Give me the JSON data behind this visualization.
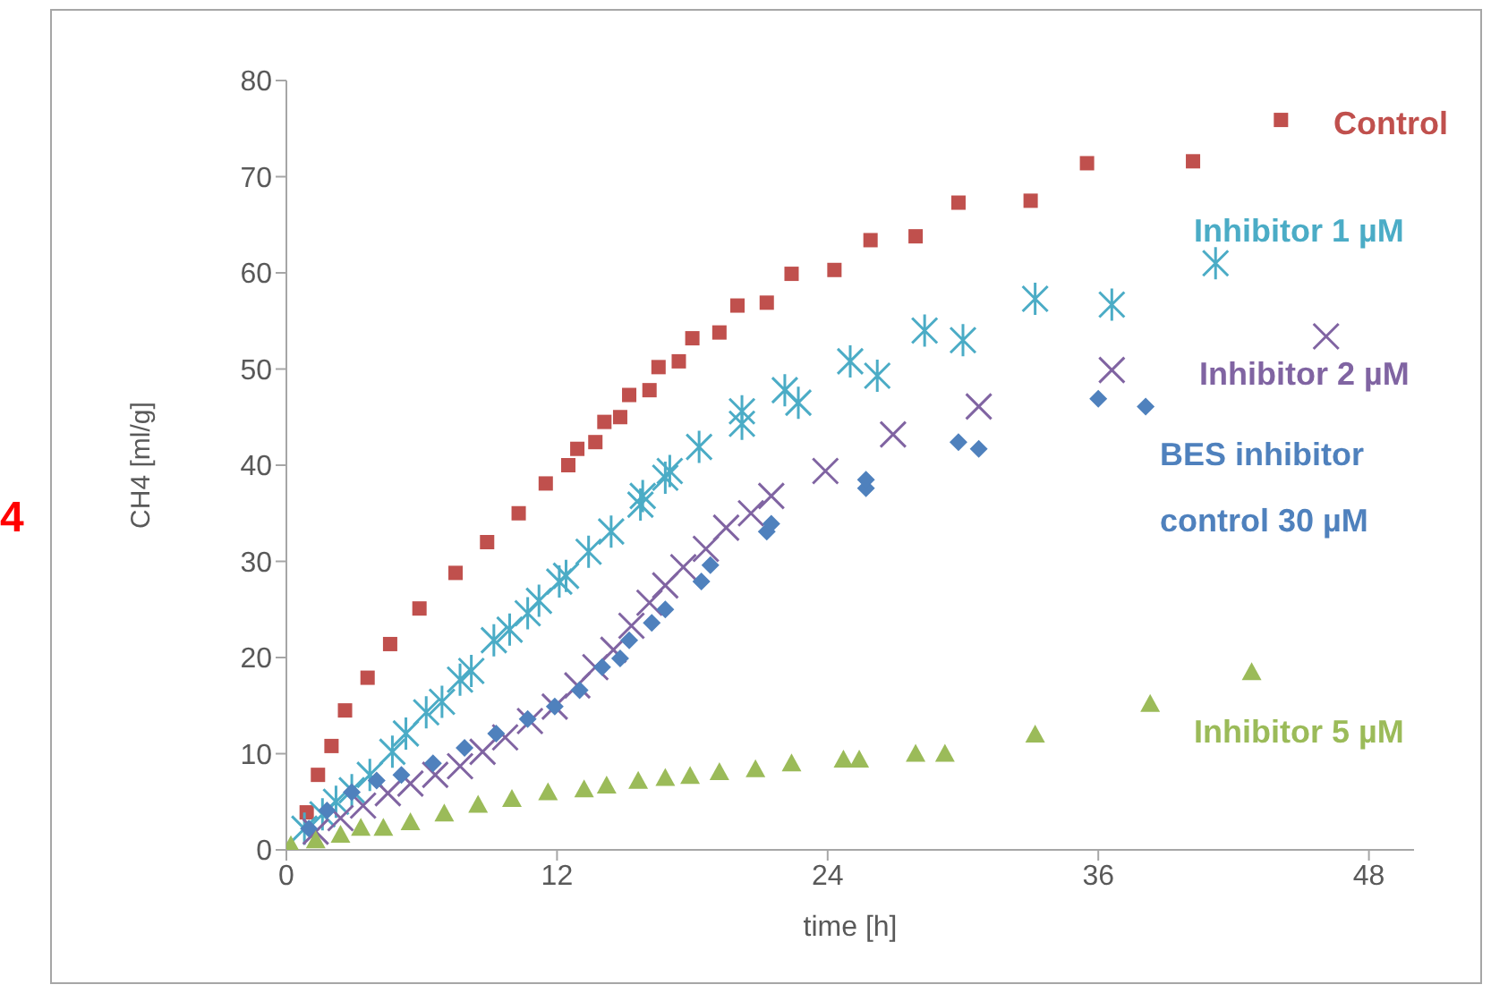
{
  "chart_data": {
    "type": "scatter",
    "xlabel": "time [h]",
    "ylabel": "CH4 [ml/g]",
    "xlim": [
      0,
      50
    ],
    "xticks": [
      0,
      12,
      24,
      36,
      48
    ],
    "ylim": [
      0,
      80
    ],
    "yticks": [
      0,
      10,
      20,
      30,
      40,
      50,
      60,
      70,
      80
    ],
    "annotations": [
      "4"
    ],
    "series": [
      {
        "name": "Control",
        "color": "#c0504d",
        "marker": "square",
        "x": [
          0.9,
          1.4,
          2.0,
          2.6,
          3.6,
          4.6,
          5.9,
          7.5,
          8.9,
          10.3,
          11.5,
          12.5,
          12.9,
          13.7,
          14.1,
          14.8,
          15.2,
          16.1,
          16.5,
          17.4,
          18,
          19.2,
          20,
          21.3,
          22.4,
          24.3,
          25.9,
          27.9,
          29.8,
          33,
          35.5,
          40.2,
          44.1
        ],
        "values": [
          3.9,
          7.8,
          10.8,
          14.5,
          17.9,
          21.4,
          25.1,
          28.8,
          32,
          35,
          38.1,
          40,
          41.7,
          42.4,
          44.5,
          45,
          47.3,
          47.8,
          50.2,
          50.8,
          53.2,
          53.8,
          56.6,
          56.9,
          59.9,
          60.3,
          63.4,
          63.8,
          67.3,
          67.5,
          71.4,
          71.6,
          75.9
        ]
      },
      {
        "name": "Inhibitor 1 µM",
        "color": "#4bacc6",
        "marker": "cross",
        "x": [
          0.8,
          1.6,
          2.2,
          2.9,
          3.7,
          4.7,
          5.3,
          6.2,
          6.9,
          7.7,
          8.2,
          9.2,
          9.9,
          10.7,
          11.2,
          12.1,
          12.4,
          13.4,
          14.4,
          15.7,
          15.8,
          16.8,
          17,
          18.3,
          20.2,
          20.2,
          22.1,
          22.7,
          25,
          26.2,
          28.3,
          30,
          33.2,
          36.6,
          41.2
        ],
        "values": [
          2.2,
          3.7,
          5,
          6.2,
          7.8,
          10.2,
          12.1,
          14.3,
          15.4,
          17.7,
          18.6,
          21.8,
          22.9,
          24.6,
          25.9,
          27.9,
          28.5,
          31,
          33.1,
          35.9,
          36.8,
          38.7,
          39.4,
          41.9,
          44.3,
          45.6,
          47.8,
          46.5,
          50.8,
          49.3,
          54,
          53,
          57.3,
          56.7,
          61
        ]
      },
      {
        "name": "Inhibitor 2 µM",
        "color": "#8064a2",
        "marker": "cross",
        "x": [
          1.3,
          2.4,
          3.4,
          4.5,
          5.5,
          6.6,
          7.7,
          8.7,
          9.7,
          10.8,
          11.9,
          12.9,
          13.7,
          14.5,
          15.3,
          16.1,
          16.8,
          17.6,
          18.6,
          19.5,
          20.6,
          21.5,
          23.9,
          26.9,
          30.7,
          36.6,
          46.1
        ],
        "values": [
          1.9,
          3.3,
          4.6,
          5.9,
          6.9,
          7.8,
          8.7,
          10.2,
          11.7,
          13.4,
          14.9,
          17.1,
          19,
          20.8,
          23.3,
          25.7,
          27.5,
          29.4,
          31.3,
          33.5,
          35,
          36.8,
          39.4,
          43.2,
          46.1,
          49.9,
          53.4
        ]
      },
      {
        "name": "BES inhibitor control 30 µM",
        "color": "#4f81bd",
        "marker": "diamond",
        "x": [
          1,
          1.8,
          2.9,
          4,
          5.1,
          6.5,
          7.9,
          9.3,
          10.7,
          11.9,
          13,
          14,
          14.8,
          15.2,
          16.2,
          16.8,
          18.4,
          18.8,
          21.3,
          21.5,
          25.7,
          25.7,
          29.8,
          30.7,
          36,
          38.1
        ],
        "values": [
          2.2,
          4.1,
          6,
          7.2,
          7.8,
          9,
          10.6,
          12.1,
          13.6,
          14.9,
          16.6,
          19,
          19.9,
          21.8,
          23.6,
          25,
          27.9,
          29.6,
          33.1,
          33.9,
          37.6,
          38.5,
          42.4,
          41.7,
          46.9,
          46.1
        ]
      },
      {
        "name": "Inhibitor 5 µM",
        "color": "#9bbb59",
        "marker": "triangle",
        "x": [
          0.2,
          1.3,
          2.4,
          3.3,
          4.3,
          5.5,
          7,
          8.5,
          10,
          11.6,
          13.2,
          14.2,
          15.6,
          16.8,
          17.9,
          19.2,
          20.8,
          22.4,
          24.7,
          25.4,
          27.9,
          29.2,
          33.2,
          38.3,
          42.8
        ],
        "values": [
          0.4,
          0.9,
          1.5,
          2.2,
          2.2,
          2.8,
          3.7,
          4.6,
          5.2,
          5.9,
          6.2,
          6.6,
          7.1,
          7.4,
          7.6,
          8,
          8.3,
          8.9,
          9.3,
          9.3,
          9.9,
          9.9,
          11.9,
          15.1,
          18.4
        ]
      }
    ]
  }
}
